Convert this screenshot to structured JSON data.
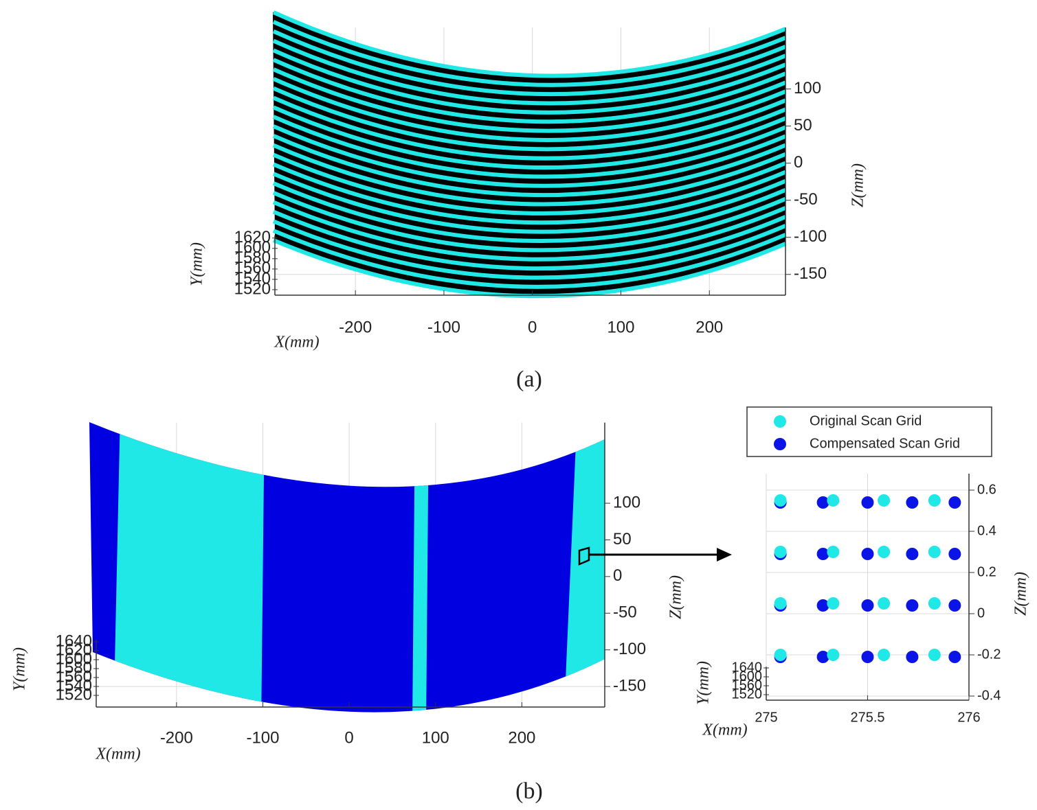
{
  "captions": [
    "(a)",
    "(b)"
  ],
  "chart_data": [
    {
      "type": "surface",
      "xlabel": "X(mm)",
      "ylabel": "Y(mm)",
      "zlabel": "Z(mm)",
      "colors": [
        "#20e8e6",
        "#000000"
      ],
      "xlim": [
        -291,
        286
      ],
      "xticks": [
        -200,
        -100,
        0,
        100,
        200
      ],
      "ylim": [
        1515,
        1625
      ],
      "yticks": [
        1520,
        1540,
        1560,
        1580,
        1600,
        1620
      ],
      "zlim": [
        -178,
        183
      ],
      "zticks": [
        -150,
        -100,
        -50,
        0,
        50,
        100
      ],
      "grid": true
    },
    {
      "type": "surface",
      "xlabel": "X(mm)",
      "ylabel": "Y(mm)",
      "zlabel": "Z(mm)",
      "colors": [
        "#0000e0",
        "#20e8e6"
      ],
      "xlim": [
        -293,
        296
      ],
      "xticks": [
        -200,
        -100,
        0,
        100,
        200
      ],
      "ylim": [
        1515,
        1645
      ],
      "yticks": [
        1520,
        1540,
        1560,
        1580,
        1600,
        1620,
        1640
      ],
      "zlim": [
        -178,
        210
      ],
      "zticks": [
        -150,
        -100,
        -50,
        0,
        50,
        100
      ],
      "grid": true
    },
    {
      "type": "scatter",
      "xlabel": "X(mm)",
      "ylabel": "Y(mm)",
      "zlabel": "Z(mm)",
      "xlim": [
        275,
        276
      ],
      "xticks": [
        275,
        275.5,
        276
      ],
      "ylim": [
        1515,
        1645
      ],
      "yticks": [
        1520,
        1560,
        1600,
        1640
      ],
      "zlim": [
        -0.4,
        0.68
      ],
      "zticks": [
        -0.4,
        -0.2,
        0,
        0.2,
        0.4,
        0.6
      ],
      "grid": true,
      "series": [
        {
          "name": "Compensated Scan Grid",
          "color": "#0a14e6",
          "x": [
            275.07,
            275.28,
            275.5,
            275.72,
            275.93,
            275.07,
            275.28,
            275.5,
            275.72,
            275.93,
            275.07,
            275.28,
            275.5,
            275.72,
            275.93,
            275.07,
            275.28,
            275.5,
            275.72,
            275.93
          ],
          "values": [
            0.54,
            0.54,
            0.54,
            0.54,
            0.54,
            0.29,
            0.29,
            0.29,
            0.29,
            0.29,
            0.04,
            0.04,
            0.04,
            0.04,
            0.04,
            -0.21,
            -0.21,
            -0.21,
            -0.21,
            -0.21
          ]
        },
        {
          "name": "Original Scan Grid",
          "color": "#20e8e6",
          "x": [
            275.07,
            275.33,
            275.58,
            275.83,
            275.07,
            275.33,
            275.58,
            275.83,
            275.07,
            275.33,
            275.58,
            275.83,
            275.07,
            275.33,
            275.58,
            275.83
          ],
          "values": [
            0.55,
            0.55,
            0.55,
            0.55,
            0.3,
            0.3,
            0.3,
            0.3,
            0.05,
            0.05,
            0.05,
            0.05,
            -0.2,
            -0.2,
            -0.2,
            -0.2
          ]
        }
      ]
    }
  ]
}
